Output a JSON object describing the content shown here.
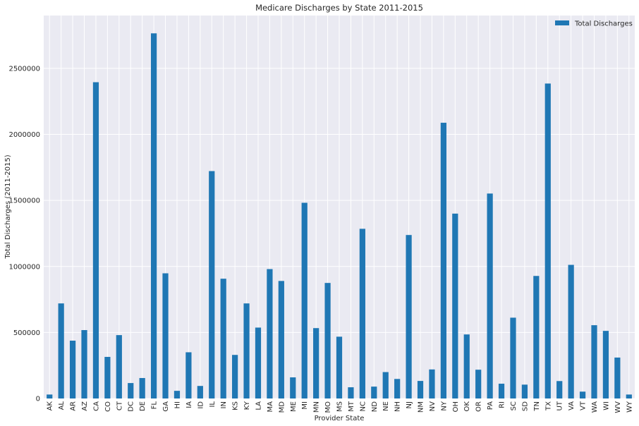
{
  "chart_data": {
    "type": "bar",
    "title": "Medicare Discharges by State 2011-2015",
    "xlabel": "Provider State",
    "ylabel": "Total Discharges (2011-2015)",
    "ylim": [
      0,
      2900000
    ],
    "yticks": [
      0,
      500000,
      1000000,
      1500000,
      2000000,
      2500000
    ],
    "grid": true,
    "legend_position": "top-right",
    "colors": {
      "bar": "#1f77b4",
      "background": "#eaeaf2",
      "grid": "#ffffff"
    },
    "categories": [
      "AK",
      "AL",
      "AR",
      "AZ",
      "CA",
      "CO",
      "CT",
      "DC",
      "DE",
      "FL",
      "GA",
      "HI",
      "IA",
      "ID",
      "IL",
      "IN",
      "KS",
      "KY",
      "LA",
      "MA",
      "MD",
      "ME",
      "MI",
      "MN",
      "MO",
      "MS",
      "MT",
      "NC",
      "ND",
      "NE",
      "NH",
      "NJ",
      "NM",
      "NV",
      "NY",
      "OH",
      "OK",
      "OR",
      "PA",
      "RI",
      "SC",
      "SD",
      "TN",
      "TX",
      "UT",
      "VA",
      "VT",
      "WA",
      "WI",
      "WV",
      "WY"
    ],
    "series": [
      {
        "name": "Total Discharges",
        "values": [
          30000,
          720000,
          438000,
          518000,
          2395000,
          315000,
          480000,
          117000,
          155000,
          2765000,
          948000,
          58000,
          350000,
          95000,
          1722000,
          907000,
          330000,
          720000,
          537000,
          980000,
          890000,
          160000,
          1482000,
          533000,
          875000,
          468000,
          85000,
          1285000,
          90000,
          200000,
          148000,
          1238000,
          133000,
          220000,
          2088000,
          1400000,
          485000,
          218000,
          1552000,
          112000,
          612000,
          105000,
          928000,
          2385000,
          132000,
          1012000,
          52000,
          555000,
          512000,
          310000,
          30000
        ]
      }
    ]
  }
}
